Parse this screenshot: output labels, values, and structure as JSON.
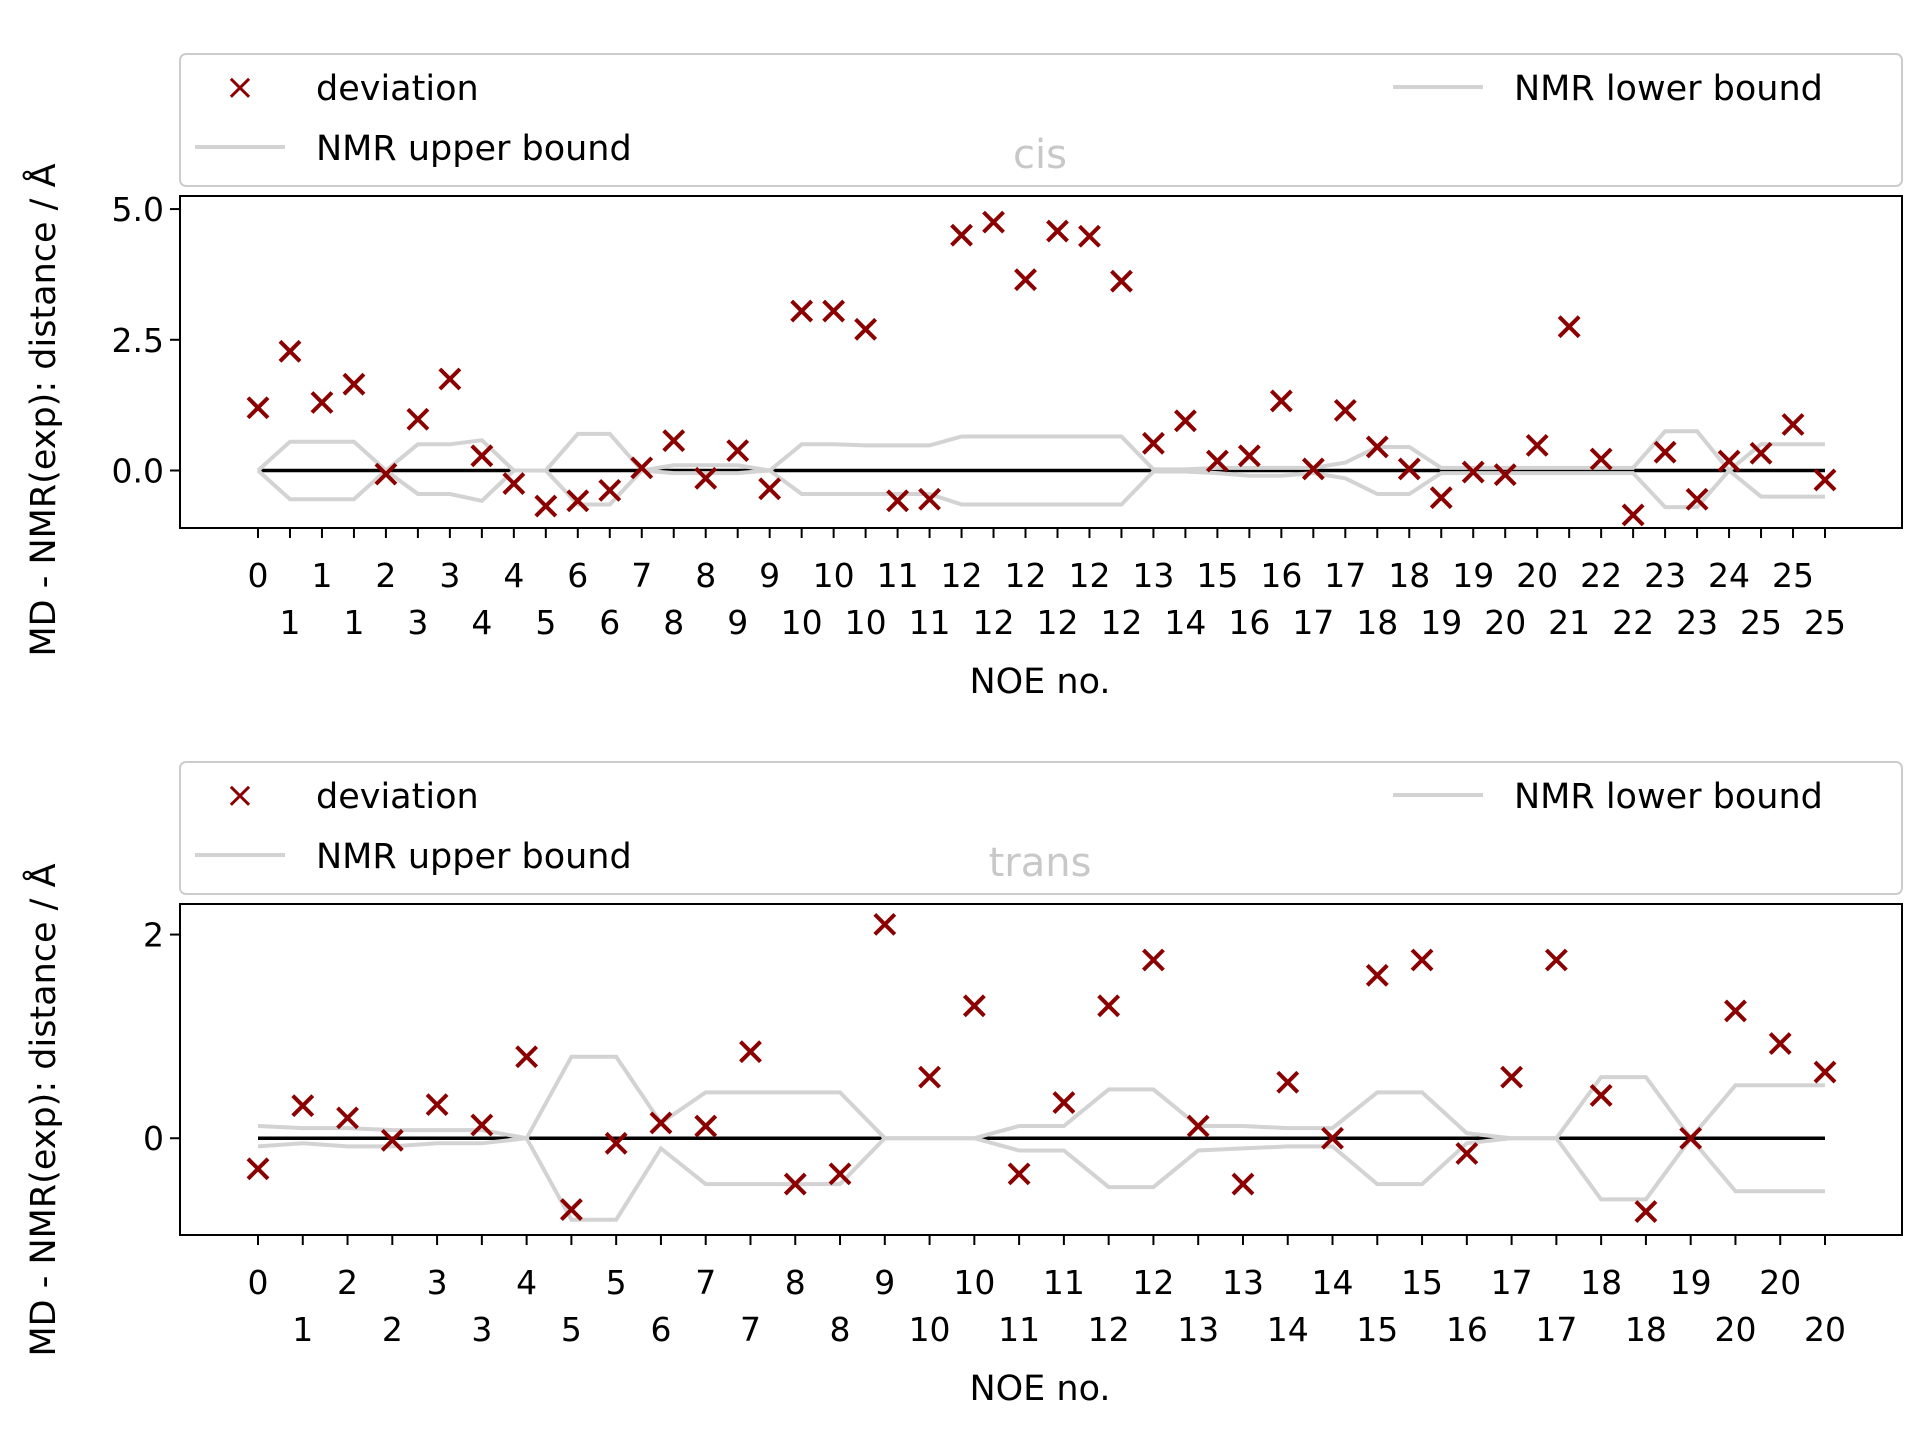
{
  "chart_data": [
    {
      "type": "scatter",
      "title": "cis",
      "xlabel": "NOE no.",
      "ylabel": "MD - NMR(exp): distance / Å",
      "ylim": [
        -1.1,
        5.25
      ],
      "yticks": [
        "0.0",
        "2.5",
        "5.0"
      ],
      "ytick_values": [
        0,
        2.5,
        5.0
      ],
      "legend": {
        "placement": "top",
        "entries": [
          "deviation",
          "NMR upper bound",
          "NMR lower bound"
        ]
      },
      "categories": [
        "0\n",
        "\n1",
        "1\n",
        "\n1",
        "2\n",
        "\n3",
        "3\n",
        "\n4",
        "4\n",
        "\n5",
        "6\n",
        "\n6",
        "7\n",
        "\n8",
        "8\n",
        "\n9",
        "9\n",
        "\n10",
        "10\n",
        "\n10",
        "11\n",
        "\n11",
        "12\n",
        "\n12",
        "12\n",
        "\n12",
        "12\n",
        "\n12",
        "13\n",
        "\n14",
        "15\n",
        "\n16",
        "16\n",
        "\n17",
        "17\n",
        "\n18",
        "18\n",
        "\n19",
        "19\n",
        "\n20",
        "20\n",
        "\n21",
        "22\n",
        "\n22",
        "23\n",
        "\n23",
        "24\n",
        "\n25",
        "25\n",
        "\n25"
      ],
      "deviation": [
        1.2,
        2.28,
        1.3,
        1.65,
        -0.07,
        0.98,
        1.75,
        0.28,
        -0.25,
        -0.68,
        -0.58,
        -0.38,
        0.05,
        0.57,
        -0.15,
        0.38,
        -0.35,
        3.05,
        3.05,
        2.7,
        -0.58,
        -0.55,
        4.5,
        4.75,
        3.65,
        4.58,
        4.48,
        3.62,
        0.52,
        0.95,
        0.18,
        0.28,
        1.33,
        0.03,
        1.15,
        0.45,
        0.03,
        -0.52,
        -0.03,
        -0.08,
        0.48,
        2.75,
        0.22,
        -0.85,
        0.35,
        -0.55,
        0.18,
        0.33,
        0.88,
        -0.18
      ],
      "upper_bound": [
        0,
        0.55,
        0.55,
        0.55,
        0,
        0.5,
        0.5,
        0.58,
        0,
        0,
        0.7,
        0.7,
        0,
        0.1,
        0.1,
        0.1,
        0,
        0.5,
        0.5,
        0.48,
        0.48,
        0.48,
        0.65,
        0.65,
        0.65,
        0.65,
        0.65,
        0.65,
        0.02,
        0.02,
        0.05,
        0.05,
        0.05,
        0.05,
        0.15,
        0.45,
        0.45,
        0.05,
        0.05,
        0.05,
        0.05,
        0.05,
        0.05,
        0.05,
        0.75,
        0.75,
        0,
        0.5,
        0.5,
        0.5
      ],
      "lower_bound": [
        0,
        -0.55,
        -0.55,
        -0.55,
        0,
        -0.45,
        -0.45,
        -0.58,
        0,
        0,
        -0.65,
        -0.65,
        0,
        -0.05,
        -0.05,
        -0.05,
        0,
        -0.45,
        -0.45,
        -0.45,
        -0.45,
        -0.45,
        -0.65,
        -0.65,
        -0.65,
        -0.65,
        -0.65,
        -0.65,
        -0.02,
        -0.02,
        -0.05,
        -0.1,
        -0.1,
        -0.05,
        -0.15,
        -0.45,
        -0.45,
        -0.05,
        -0.05,
        -0.05,
        -0.05,
        -0.05,
        -0.05,
        -0.05,
        -0.7,
        -0.7,
        0,
        -0.5,
        -0.5,
        -0.5
      ],
      "colors": {
        "deviation": "#8b0000",
        "bound": "#d3d3d3",
        "zero_line": "#000000"
      }
    },
    {
      "type": "scatter",
      "title": "trans",
      "xlabel": "NOE no.",
      "ylabel": "MD - NMR(exp): distance / Å",
      "ylim": [
        -0.95,
        2.3
      ],
      "yticks": [
        "0",
        "2"
      ],
      "ytick_values": [
        0,
        2
      ],
      "legend": {
        "placement": "top",
        "entries": [
          "deviation",
          "NMR upper bound",
          "NMR lower bound"
        ]
      },
      "categories": [
        "0\n",
        "\n1",
        "2\n",
        "\n2",
        "3\n",
        "\n3",
        "4\n",
        "\n5",
        "5\n",
        "\n6",
        "7\n",
        "\n7",
        "8\n",
        "\n8",
        "9\n",
        "\n10",
        "10\n",
        "\n11",
        "11\n",
        "\n12",
        "12\n",
        "\n13",
        "13\n",
        "\n14",
        "14\n",
        "\n15",
        "15\n",
        "\n16",
        "17\n",
        "\n17",
        "18\n",
        "\n18",
        "19\n",
        "\n20",
        "20\n",
        "\n20"
      ],
      "deviation": [
        -0.3,
        0.32,
        0.2,
        -0.02,
        0.33,
        0.13,
        0.8,
        -0.7,
        -0.05,
        0.15,
        0.12,
        0.85,
        -0.45,
        -0.35,
        2.1,
        0.6,
        1.3,
        -0.35,
        0.35,
        1.3,
        1.75,
        0.12,
        -0.45,
        0.55,
        0,
        1.6,
        1.75,
        -0.15,
        0.6,
        1.75,
        0.42,
        -0.72,
        0,
        1.25,
        0.93,
        0.65
      ],
      "upper_bound": [
        0.12,
        0.1,
        0.1,
        0.08,
        0.08,
        0.08,
        0,
        0.8,
        0.8,
        0.15,
        0.45,
        0.45,
        0.45,
        0.45,
        0,
        0,
        0,
        0.12,
        0.12,
        0.48,
        0.48,
        0.12,
        0.12,
        0.1,
        0.1,
        0.45,
        0.45,
        0.05,
        0,
        0,
        0.6,
        0.6,
        0,
        0.52,
        0.52,
        0.52
      ],
      "lower_bound": [
        -0.08,
        -0.05,
        -0.08,
        -0.08,
        -0.05,
        -0.05,
        0,
        -0.8,
        -0.8,
        -0.1,
        -0.45,
        -0.45,
        -0.45,
        -0.45,
        0,
        0,
        0,
        -0.12,
        -0.12,
        -0.48,
        -0.48,
        -0.12,
        -0.1,
        -0.08,
        -0.08,
        -0.45,
        -0.45,
        -0.05,
        0,
        0,
        -0.6,
        -0.6,
        0,
        -0.52,
        -0.52,
        -0.52
      ],
      "colors": {
        "deviation": "#8b0000",
        "bound": "#d3d3d3",
        "zero_line": "#000000"
      }
    }
  ]
}
